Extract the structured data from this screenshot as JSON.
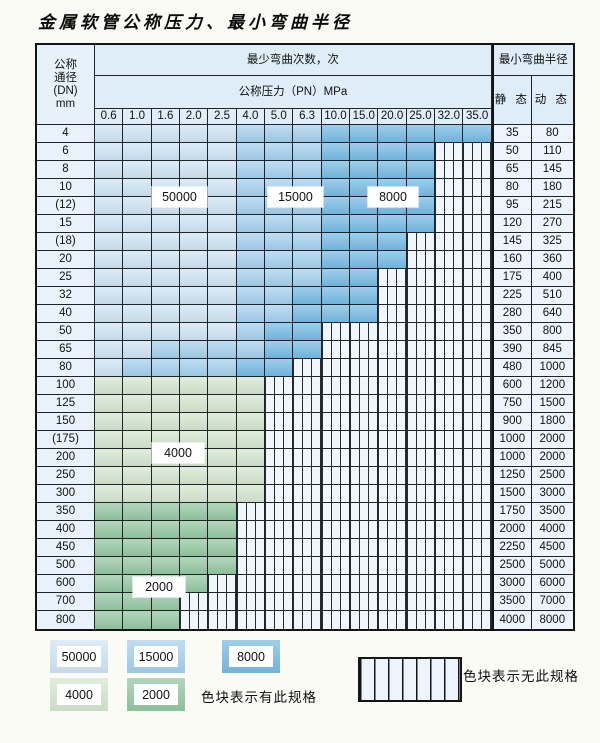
{
  "page": {
    "title": "金属软管公称压力、最小弯曲半径"
  },
  "table": {
    "header": {
      "dn_lines": [
        "公称",
        "通径",
        "(DN)",
        "mm"
      ],
      "cycles_title": "最少弯曲次数，次",
      "pressure_title": "公称压力（PN）MPa",
      "radius_title": "最小弯曲半径",
      "static_label": "静 态",
      "dynamic_label": "动 态",
      "pressures": [
        "0.6",
        "1.0",
        "1.6",
        "2.0",
        "2.5",
        "4.0",
        "5.0",
        "6.3",
        "10.0",
        "15.0",
        "20.0",
        "25.0",
        "32.0",
        "35.0"
      ]
    },
    "cell_code_meaning": {
      "1": "50000 cycles",
      "2": "15000 cycles",
      "3": "8000 cycles",
      "4": "4000 cycles",
      "5": "2000 cycles",
      ".": "no spec (hatched)"
    },
    "rows": [
      {
        "dn": "4",
        "cells": "11111222333333",
        "static": "35",
        "dynamic": "80"
      },
      {
        "dn": "6",
        "cells": "111112223333..",
        "static": "50",
        "dynamic": "110"
      },
      {
        "dn": "8",
        "cells": "111112223333..",
        "static": "65",
        "dynamic": "145"
      },
      {
        "dn": "10",
        "cells": "111112223333..",
        "static": "80",
        "dynamic": "180"
      },
      {
        "dn": "(12)",
        "cells": "111112223333..",
        "static": "95",
        "dynamic": "215"
      },
      {
        "dn": "15",
        "cells": "111112223333..",
        "static": "120",
        "dynamic": "270"
      },
      {
        "dn": "(18)",
        "cells": "11111222333...",
        "static": "145",
        "dynamic": "325"
      },
      {
        "dn": "20",
        "cells": "11111222333...",
        "static": "160",
        "dynamic": "360"
      },
      {
        "dn": "25",
        "cells": "1111122233....",
        "static": "175",
        "dynamic": "400"
      },
      {
        "dn": "32",
        "cells": "1111122333....",
        "static": "225",
        "dynamic": "510"
      },
      {
        "dn": "40",
        "cells": "1111122333....",
        "static": "280",
        "dynamic": "640"
      },
      {
        "dn": "50",
        "cells": "11111233......",
        "static": "350",
        "dynamic": "800"
      },
      {
        "dn": "65",
        "cells": "11222233......",
        "static": "390",
        "dynamic": "845"
      },
      {
        "dn": "80",
        "cells": "1222233.......",
        "static": "480",
        "dynamic": "1000"
      },
      {
        "dn": "100",
        "cells": "444444........",
        "static": "600",
        "dynamic": "1200"
      },
      {
        "dn": "125",
        "cells": "444444........",
        "static": "750",
        "dynamic": "1500"
      },
      {
        "dn": "150",
        "cells": "444444........",
        "static": "900",
        "dynamic": "1800"
      },
      {
        "dn": "(175)",
        "cells": "444444........",
        "static": "1000",
        "dynamic": "2000"
      },
      {
        "dn": "200",
        "cells": "444444........",
        "static": "1000",
        "dynamic": "2000"
      },
      {
        "dn": "250",
        "cells": "444444........",
        "static": "1250",
        "dynamic": "2500"
      },
      {
        "dn": "300",
        "cells": "444444........",
        "static": "1500",
        "dynamic": "3000"
      },
      {
        "dn": "350",
        "cells": "55555.........",
        "static": "1750",
        "dynamic": "3500"
      },
      {
        "dn": "400",
        "cells": "55555.........",
        "static": "2000",
        "dynamic": "4000"
      },
      {
        "dn": "450",
        "cells": "55555.........",
        "static": "2250",
        "dynamic": "4500"
      },
      {
        "dn": "500",
        "cells": "55555.........",
        "static": "2500",
        "dynamic": "5000"
      },
      {
        "dn": "600",
        "cells": "5555..........",
        "static": "3000",
        "dynamic": "6000"
      },
      {
        "dn": "700",
        "cells": "555...........",
        "static": "3500",
        "dynamic": "7000"
      },
      {
        "dn": "800",
        "cells": "555...........",
        "static": "4000",
        "dynamic": "8000"
      }
    ],
    "zone_labels": [
      {
        "text": "50000"
      },
      {
        "text": "15000"
      },
      {
        "text": "8000"
      },
      {
        "text": "4000"
      },
      {
        "text": "2000"
      }
    ]
  },
  "legend": {
    "items": [
      {
        "label": "50000",
        "color": "#cfe5f5"
      },
      {
        "label": "15000",
        "color": "#a5d1ee"
      },
      {
        "label": "8000",
        "color": "#77bce6"
      },
      {
        "label": "4000",
        "color": "#d5e7d0"
      },
      {
        "label": "2000",
        "color": "#95c8a2"
      }
    ],
    "has_spec_text": "色块表示有此规格",
    "no_spec_text": "色块表示无此规格"
  },
  "colors": {
    "cycles_50000": "#cfe5f5",
    "cycles_15000": "#a5d1ee",
    "cycles_8000": "#77bce6",
    "cycles_4000": "#d5e7d0",
    "cycles_2000": "#95c8a2",
    "header_bg": "#dfedf9",
    "no_spec_bg": "#f1f6fc",
    "grid_line": "#20242a"
  }
}
